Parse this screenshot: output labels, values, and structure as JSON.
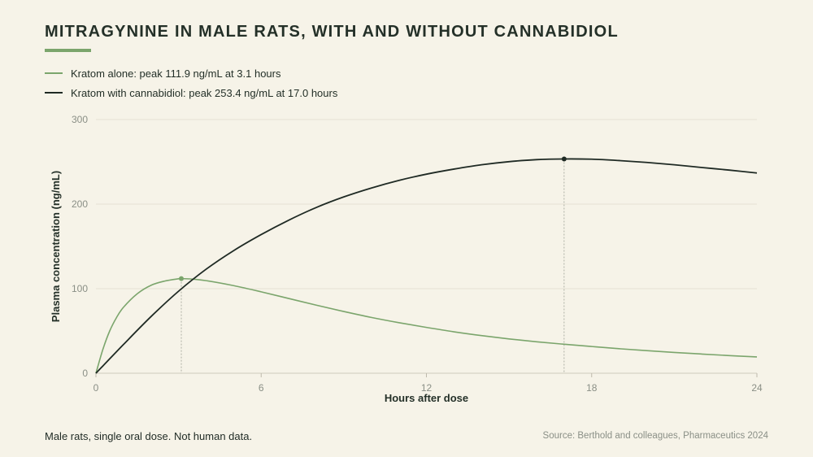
{
  "title": "MITRAGYNINE IN MALE RATS, WITH AND WITHOUT CANNABIDIOL",
  "accent_color": "#7ba56c",
  "legend": [
    {
      "label": "Kratom alone: peak 111.9 ng/mL at 3.1 hours",
      "color": "#7ba56c"
    },
    {
      "label": "Kratom with cannabidiol: peak 253.4 ng/mL at 17.0 hours",
      "color": "#1f2a24"
    }
  ],
  "note": "Male rats, single oral dose. Not human data.",
  "source": "Source: Berthold and colleagues, Pharmaceutics 2024",
  "chart_data": {
    "type": "line",
    "xlabel": "Hours after dose",
    "ylabel": "Plasma concentration (ng/mL)",
    "xlim": [
      0,
      24
    ],
    "ylim": [
      0,
      300
    ],
    "x_ticks": [
      0,
      6,
      12,
      18,
      24
    ],
    "y_ticks": [
      0,
      100,
      200,
      300
    ],
    "grid": "horizontal",
    "series": [
      {
        "label": "Kratom alone",
        "color": "#7ba56c",
        "peak": {
          "x": 3.1,
          "y": 111.9
        },
        "x": [
          0,
          0.25,
          0.5,
          0.75,
          1,
          1.5,
          2,
          2.5,
          3,
          3.1,
          3.5,
          4,
          5,
          6,
          7,
          8,
          9,
          10,
          11,
          12,
          13,
          14,
          15,
          16,
          17,
          18,
          19,
          20,
          21,
          22,
          23,
          24
        ],
        "y": [
          0,
          28,
          50,
          66,
          78,
          94,
          104,
          109,
          111.7,
          111.9,
          111.3,
          109.5,
          103.6,
          96.3,
          88.4,
          80.5,
          73.0,
          66.0,
          59.8,
          54.2,
          49.0,
          44.5,
          40.6,
          37.2,
          34.3,
          31.6,
          29.0,
          26.7,
          24.6,
          22.7,
          20.9,
          19.3
        ]
      },
      {
        "label": "Kratom with cannabidiol",
        "color": "#1f2a24",
        "peak": {
          "x": 17.0,
          "y": 253.4
        },
        "x": [
          0,
          1,
          2,
          3,
          4,
          5,
          6,
          7,
          8,
          9,
          10,
          11,
          12,
          13,
          14,
          15,
          16,
          17,
          18,
          19,
          20,
          21,
          22,
          23,
          24
        ],
        "y": [
          0,
          34,
          67,
          97,
          123,
          145,
          164,
          181,
          196,
          208.5,
          219,
          228,
          235.4,
          241.4,
          246.5,
          250.2,
          252.6,
          253.4,
          253.1,
          251.5,
          249.3,
          246.5,
          243.3,
          240.2,
          236.8
        ]
      }
    ]
  }
}
